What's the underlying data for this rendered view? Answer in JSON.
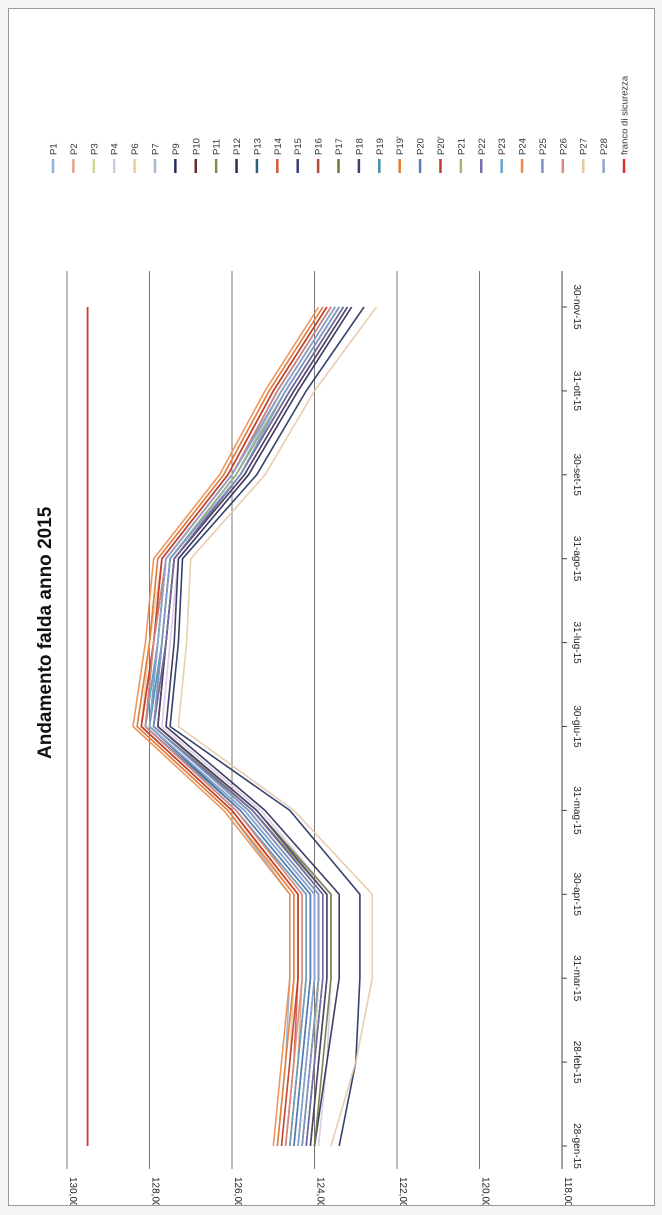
{
  "chart_data": {
    "type": "line",
    "title": "Andamento falda anno 2015",
    "categories": [
      "28-gen-15",
      "28-feb-15",
      "31-mar-15",
      "30-apr-15",
      "31-mag-15",
      "30-giu-15",
      "31-lug-15",
      "31-ago-15",
      "30-set-15",
      "31-ott-15",
      "30-nov-15"
    ],
    "y_ticks": [
      "130,00",
      "128,00",
      "126,00",
      "124,00",
      "122,00",
      "120,00",
      "118,00"
    ],
    "ylim": [
      118,
      130
    ],
    "grid": true,
    "legend_position": "right",
    "series": [
      {
        "name": "P1",
        "color": "#8fb3d9",
        "values": [
          124.9,
          124.7,
          124.6,
          124.6,
          126.1,
          128.3,
          128.0,
          127.8,
          126.2,
          125.1,
          123.8
        ]
      },
      {
        "name": "P2",
        "color": "#e8a08a",
        "values": [
          124.6,
          124.4,
          124.3,
          124.3,
          125.9,
          128.1,
          127.8,
          127.6,
          126.0,
          124.9,
          123.6
        ]
      },
      {
        "name": "P3",
        "color": "#c8d9a0",
        "values": [
          124.2,
          124.0,
          123.9,
          123.9,
          125.6,
          127.9,
          127.6,
          127.4,
          125.8,
          124.6,
          123.3
        ]
      },
      {
        "name": "P4",
        "color": "#d9c7e6",
        "values": [
          123.9,
          123.7,
          123.6,
          123.6,
          125.3,
          127.7,
          127.5,
          127.3,
          125.6,
          124.4,
          123.1
        ]
      },
      {
        "name": "P6",
        "color": "#f5c89a",
        "values": [
          124.8,
          124.6,
          124.5,
          124.5,
          126.0,
          128.2,
          128.0,
          127.7,
          126.1,
          125.0,
          123.7
        ]
      },
      {
        "name": "P7",
        "color": "#a9b8d6",
        "values": [
          124.4,
          124.2,
          124.0,
          124.0,
          125.7,
          128.0,
          127.7,
          127.5,
          125.9,
          124.8,
          123.5
        ]
      },
      {
        "name": "P9",
        "color": "#1f2f5c",
        "values": [
          123.4,
          123.0,
          122.9,
          122.9,
          124.6,
          127.5,
          127.3,
          127.2,
          125.4,
          124.2,
          122.8
        ]
      },
      {
        "name": "P10",
        "color": "#6e2a2a",
        "values": [
          124.3,
          124.1,
          123.9,
          123.9,
          125.6,
          127.9,
          127.7,
          127.5,
          125.9,
          124.7,
          123.4
        ]
      },
      {
        "name": "P11",
        "color": "#7d8f4a",
        "values": [
          124.1,
          123.9,
          123.7,
          123.7,
          125.5,
          127.8,
          127.6,
          127.4,
          125.8,
          124.6,
          123.3
        ]
      },
      {
        "name": "P12",
        "color": "#2a2a55",
        "values": [
          124.0,
          123.7,
          123.4,
          123.4,
          125.2,
          127.6,
          127.4,
          127.3,
          125.6,
          124.4,
          123.1
        ]
      },
      {
        "name": "P13",
        "color": "#2b5f7a",
        "values": [
          124.5,
          124.3,
          124.1,
          124.1,
          125.8,
          128.0,
          127.8,
          127.6,
          126.0,
          124.8,
          123.5
        ]
      },
      {
        "name": "P14",
        "color": "#d0563a",
        "values": [
          124.7,
          124.5,
          124.4,
          124.4,
          126.0,
          128.2,
          127.9,
          127.7,
          126.1,
          125.0,
          123.7
        ]
      },
      {
        "name": "P15",
        "color": "#34407a",
        "values": [
          124.2,
          124.0,
          123.8,
          123.8,
          125.5,
          127.9,
          127.6,
          127.4,
          125.8,
          124.6,
          123.3
        ]
      },
      {
        "name": "P16",
        "color": "#b04b35",
        "values": [
          124.6,
          124.4,
          124.2,
          124.2,
          125.9,
          128.1,
          127.9,
          127.6,
          126.0,
          124.9,
          123.6
        ]
      },
      {
        "name": "P17",
        "color": "#6b7a3a",
        "values": [
          124.0,
          123.8,
          123.6,
          123.6,
          125.4,
          127.8,
          127.6,
          127.4,
          125.7,
          124.5,
          123.2
        ]
      },
      {
        "name": "P18",
        "color": "#4a3a6e",
        "values": [
          124.1,
          123.9,
          123.7,
          123.7,
          125.4,
          127.8,
          127.6,
          127.4,
          125.7,
          124.5,
          123.2
        ]
      },
      {
        "name": "P19",
        "color": "#3f8fb0",
        "values": [
          124.4,
          124.2,
          124.0,
          124.0,
          125.7,
          128.0,
          127.7,
          127.5,
          125.9,
          124.7,
          123.4
        ]
      },
      {
        "name": "P19'",
        "color": "#e57a2a",
        "values": [
          124.9,
          124.7,
          124.5,
          124.5,
          126.1,
          128.3,
          128.0,
          127.8,
          126.2,
          125.1,
          123.8
        ]
      },
      {
        "name": "P20",
        "color": "#5a7fb8",
        "values": [
          124.5,
          124.3,
          124.1,
          124.1,
          125.8,
          128.1,
          127.8,
          127.6,
          126.0,
          124.9,
          123.6
        ]
      },
      {
        "name": "P20'",
        "color": "#c0392b",
        "values": [
          124.8,
          124.6,
          124.4,
          124.4,
          126.0,
          128.2,
          127.9,
          127.7,
          126.1,
          125.0,
          123.7
        ]
      },
      {
        "name": "P21",
        "color": "#9fb87a",
        "values": [
          124.3,
          124.1,
          123.9,
          123.9,
          125.6,
          127.9,
          127.7,
          127.5,
          125.9,
          124.7,
          123.4
        ]
      },
      {
        "name": "P22",
        "color": "#7a6ea8",
        "values": [
          124.2,
          124.0,
          123.8,
          123.8,
          125.5,
          127.9,
          127.6,
          127.4,
          125.8,
          124.6,
          123.3
        ]
      },
      {
        "name": "P23",
        "color": "#5fa8c8",
        "values": [
          124.6,
          124.4,
          124.2,
          124.2,
          125.9,
          128.1,
          127.8,
          127.6,
          126.0,
          124.8,
          123.5
        ]
      },
      {
        "name": "P24",
        "color": "#f08a4a",
        "values": [
          125.0,
          124.8,
          124.6,
          124.6,
          126.2,
          128.4,
          128.1,
          127.9,
          126.3,
          125.2,
          123.9
        ]
      },
      {
        "name": "P25",
        "color": "#7d93c7",
        "values": [
          124.3,
          124.1,
          123.9,
          123.9,
          125.6,
          127.9,
          127.7,
          127.5,
          125.8,
          124.7,
          123.4
        ]
      },
      {
        "name": "P26",
        "color": "#d98a7a",
        "values": [
          124.7,
          124.5,
          124.3,
          124.3,
          125.9,
          128.1,
          127.9,
          127.6,
          126.0,
          124.9,
          123.6
        ]
      },
      {
        "name": "P27",
        "color": "#e6c9a8",
        "values": [
          123.6,
          123.0,
          122.6,
          122.6,
          124.5,
          127.3,
          127.1,
          127.0,
          125.2,
          124.0,
          122.5
        ]
      },
      {
        "name": "P28",
        "color": "#8fa3d1",
        "values": [
          124.4,
          124.2,
          124.0,
          124.0,
          125.7,
          128.0,
          127.8,
          127.6,
          126.0,
          124.8,
          123.5
        ]
      },
      {
        "name": "franco di sicurezza",
        "color": "#d9342b",
        "values": [
          129.5,
          129.5,
          129.5,
          129.5,
          129.5,
          129.5,
          129.5,
          129.5,
          129.5,
          129.5,
          129.5
        ]
      }
    ]
  }
}
